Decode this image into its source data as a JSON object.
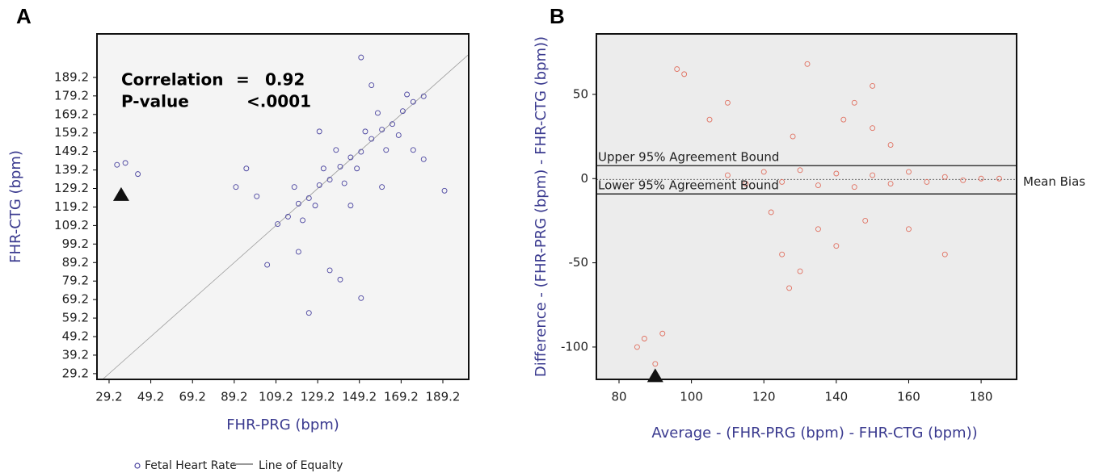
{
  "chart_data": [
    {
      "type": "scatter",
      "panel": "A",
      "xlabel": "FHR-PRG (bpm)",
      "ylabel": "FHR-CTG (bpm)",
      "xlim": [
        23.4,
        201.6
      ],
      "ylim": [
        26.1,
        212.7
      ],
      "xticks": [
        29.2,
        49.2,
        69.2,
        89.2,
        109.2,
        129.2,
        149.2,
        169.2,
        189.2
      ],
      "yticks": [
        29.2,
        39.2,
        49.2,
        59.2,
        69.2,
        79.2,
        89.2,
        99.2,
        109.2,
        119.2,
        129.2,
        139.2,
        149.2,
        159.2,
        169.2,
        179.2,
        189.2
      ],
      "series": [
        {
          "name": "Fetal Heart Rate",
          "color": "#4b45a0",
          "x": [
            110,
            115,
            120,
            125,
            130,
            135,
            140,
            145,
            150,
            155,
            160,
            165,
            170,
            175,
            180,
            118,
            128,
            138,
            148,
            158,
            168,
            122,
            132,
            142,
            152,
            162,
            172,
            100,
            95,
            150,
            140,
            105,
            135,
            160,
            180,
            190,
            145,
            130,
            175,
            90,
            37,
            33,
            43,
            120,
            150,
            125,
            155
          ],
          "y": [
            110,
            114,
            121,
            124,
            131,
            134,
            141,
            146,
            149,
            156,
            161,
            164,
            171,
            176,
            179,
            130,
            120,
            150,
            140,
            170,
            158,
            112,
            140,
            132,
            160,
            150,
            180,
            125,
            140,
            200,
            80,
            88,
            85,
            130,
            145,
            128,
            120,
            160,
            150,
            130,
            143,
            142,
            137,
            95,
            70,
            62,
            185
          ]
        }
      ],
      "reference_line": {
        "name": "Line of Equalty",
        "color": "#9a9a9a"
      },
      "stats": [
        {
          "label": "Correlation",
          "sep": "=",
          "value": 0.92
        },
        {
          "label": "P-value",
          "value": "<.0001"
        }
      ],
      "outlier_marker": {
        "x": 35,
        "y": 126
      }
    },
    {
      "type": "scatter",
      "panel": "B",
      "xlabel": "Average - (FHR-PRG (bpm) - FHR-CTG (bpm))",
      "ylabel": "Difference - (FHR-PRG (bpm) - FHR-CTG (bpm))",
      "xlim": [
        73.75,
        189.8
      ],
      "ylim": [
        -119.2,
        85.9
      ],
      "xticks": [
        80,
        100,
        120,
        140,
        160,
        180
      ],
      "yticks": [
        -100,
        -50,
        0,
        50
      ],
      "series": [
        {
          "color": "#e07060",
          "x": [
            110,
            115,
            120,
            125,
            130,
            135,
            140,
            145,
            150,
            155,
            160,
            165,
            170,
            175,
            180,
            185,
            122,
            128,
            135,
            142,
            148,
            155,
            125,
            130,
            145,
            150,
            140,
            132,
            98,
            96,
            110,
            127,
            160,
            170,
            85,
            87,
            90,
            92,
            105,
            150
          ],
          "y": [
            2,
            -3,
            4,
            -2,
            5,
            -4,
            3,
            -5,
            2,
            -3,
            4,
            -2,
            1,
            -1,
            0,
            0,
            -20,
            25,
            -30,
            35,
            -25,
            20,
            -45,
            -55,
            45,
            30,
            -40,
            68,
            62,
            65,
            45,
            -65,
            -30,
            -45,
            -100,
            -95,
            -110,
            -92,
            35,
            55
          ]
        }
      ],
      "hlines": [
        {
          "label": "Upper 95% Agreement Bound",
          "value": 7.7,
          "style": "solid"
        },
        {
          "label": "Mean Bias",
          "value": -0.5,
          "style": "dotted"
        },
        {
          "label": "Lower 95% Agreement Bound",
          "value": -9.1,
          "style": "solid"
        }
      ],
      "outlier_marker": {
        "x": 90,
        "y": -117
      }
    }
  ]
}
